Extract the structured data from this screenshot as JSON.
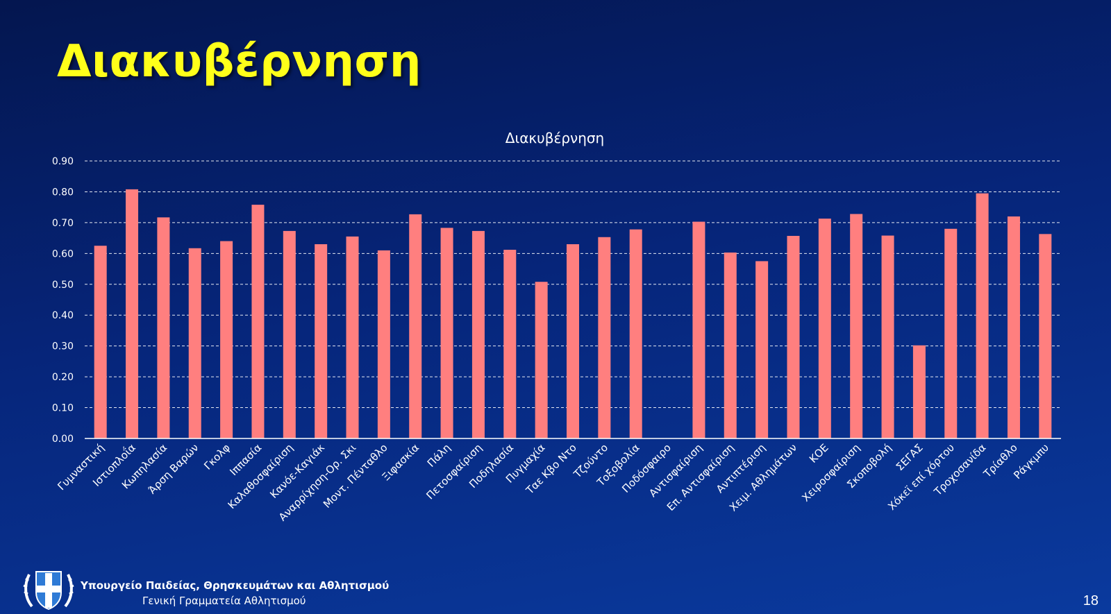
{
  "slide": {
    "title": "Διακυβέρνηση",
    "page_number": "18"
  },
  "footer": {
    "ministry": "Υπουργείο Παιδείας, Θρησκευμάτων και Αθλητισμού",
    "secretariat": "Γενική Γραμματεία Αθλητισμού"
  },
  "colors": {
    "bar": "#ff7f7f",
    "title": "#ffff1a",
    "grid": "#ffffff"
  },
  "chart_data": {
    "type": "bar",
    "title": "Διακυβέρνηση",
    "xlabel": "",
    "ylabel": "",
    "ylim": [
      0,
      0.9
    ],
    "yticks": [
      "0.00",
      "0.10",
      "0.20",
      "0.30",
      "0.40",
      "0.50",
      "0.60",
      "0.70",
      "0.80",
      "0.90"
    ],
    "grid": true,
    "legend": "none",
    "categories": [
      "Γυμναστική",
      "Ιστιοπλοΐα",
      "Κωπηλασία",
      "Άρση Βαρών",
      "Γκολφ",
      "Ιππασία",
      "Καλαθοσφαίριση",
      "Κανόε-Καγιάκ",
      "Αναρρίχηση-Ορ. Σκι",
      "Μοντ. Πένταθλο",
      "Ξιφασκία",
      "Πάλη",
      "Πετοσφαίριση",
      "Ποδηλασία",
      "Πυγμαχία",
      "Ταε Κβο Ντο",
      "Τζούντο",
      "Τοξοβολία",
      "Ποδόσφαιρο",
      "Αντισφαίριση",
      "Επ. Αντισφαίριση",
      "Αντιπτέριση",
      "Χειμ. Αθλημάτων",
      "ΚΟΕ",
      "Χειροσφαίριση",
      "Σκοποβολή",
      "ΣΕΓΑΣ",
      "Χόκεϊ επί χόρτου",
      "Τροχοσανίδα",
      "Τρίαθλο",
      "Ράγκμπυ"
    ],
    "values": [
      0.625,
      0.808,
      0.717,
      0.617,
      0.64,
      0.758,
      0.673,
      0.63,
      0.655,
      0.61,
      0.727,
      0.683,
      0.673,
      0.612,
      0.508,
      0.63,
      0.653,
      0.678,
      null,
      0.703,
      0.603,
      0.575,
      0.657,
      0.713,
      0.728,
      0.658,
      0.302,
      0.68,
      0.795,
      0.72,
      0.663
    ]
  }
}
